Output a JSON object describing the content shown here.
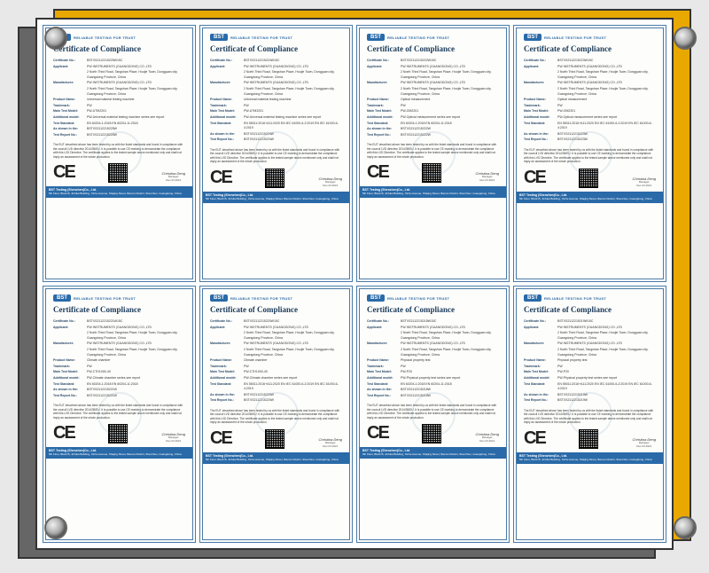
{
  "bst": {
    "logo": "BST",
    "tagline": "RELIABLE TESTING FOR TRUST"
  },
  "title": "Certificate of Compliance",
  "ce_mark": "CE",
  "signature": {
    "name": "Christina Deng",
    "role": "Manager",
    "date": "Dec.23.2021"
  },
  "applicant_company": "PW INSTRUMENTS (GUANGDONG) CO.,LTD",
  "applicant_addr": "2 North Third Road, Tangshan Place, Houjie Town, Dongguan city, Guangdong Province, China",
  "manufacturer_addr": "2 North Third Road, Tangshan Place, Houjie Town, Dongguan city, Guangdong Province, China",
  "desc_text": "The EUT described above has been tested by us with the listed standards and found in compliance with the council LVD directive 2014/35/EU. It is possible to use CE marking to demonstrate the compliance with this LVD Directive. The certificate applies to the tested sample above mentioned only and shall not imply an assessment of the whole production.",
  "footer_company": "BST Testing (Shenzhen)Co., Ltd.",
  "footer_addr": "5th Floor, Block B, Jinfulai Building, Xinhe Avenue, Shajing Street, Bao'an District, Shenzhen, Guangdong, China",
  "certs": [
    {
      "cert_no": "BSTXS2112215225W15C",
      "product": "Universal material testing machine",
      "trademark": "PW",
      "model": "PW-UTM2201",
      "add_model": "PW-Universal material testing machine series see report",
      "std": "EN 60204-1:2018\\nEN 60204-11:2018",
      "shown": "BSTXS2112215225W",
      "report": "BSTXS2112215225W"
    },
    {
      "cert_no": "BSTXS2112215224W15C",
      "product": "Universal material testing machine",
      "trademark": "PW",
      "model": "PW-UTM2201",
      "add_model": "PW-Universal material testing machine series see report",
      "std": "EN 55011:2016+A11:2020\\nEN IEC 61000-6-2:2019\\nEN IEC 61000-6-4:2019",
      "shown": "BSTXS2112215224W",
      "report": "BSTXS2112215224W"
    },
    {
      "cert_no": "BSTXS2112215222W15C",
      "product": "Optical measurement",
      "trademark": "PW",
      "model": "PW-OM2201",
      "add_model": "PW-Optical measurement series see report",
      "std": "EN 60204-1:2018\\nEN 60204-11:2018",
      "shown": "BSTXS2112215222W",
      "report": "BSTXS2112215222W"
    },
    {
      "cert_no": "BSTXS2112215223W15C",
      "product": "Optical measurement",
      "trademark": "PW",
      "model": "PW-OM2201",
      "add_model": "PW-Optical measurement series see report",
      "std": "EN 55011:2016+A11:2020\\nEN IEC 61000-6-2:2019\\nEN IEC 61000-6-4:2019",
      "shown": "BSTXS2112215223W",
      "report": "BSTXS2112215223W"
    },
    {
      "cert_no": "BSTXS2112215221W15C",
      "product": "Climate chamber",
      "trademark": "PW",
      "model": "PW-CTH1000-40",
      "add_model": "PW-Climate chamber series see report",
      "std": "EN 60204-1:2018\\nEN 60204-11:2018",
      "shown": "BSTXS2112215221W",
      "report": "BSTXS2112215221W"
    },
    {
      "cert_no": "BSTXS2112215220W15C",
      "product": "Climate chamber",
      "trademark": "PW",
      "model": "PW-CTH1000-40",
      "add_model": "PW-Climate chamber series see report",
      "std": "EN 55011:2016+A11:2020\\nEN IEC 61000-6-2:2019\\nEN IEC 61000-6-4:2019",
      "shown": "BSTXS2112215220W",
      "report": "BSTXS2112215220W"
    },
    {
      "cert_no": "BSTXS2112215218W15C",
      "product": "Physical property test",
      "trademark": "PW",
      "model": "PW-P20",
      "add_model": "PW-Physical property test series see report",
      "std": "EN 60204-1:2018\\nEN 60204-11:2018",
      "shown": "BSTXS2112215218W",
      "report": "BSTXS2112215218W"
    },
    {
      "cert_no": "BSTXS2112215219W15C",
      "product": "Physical property test",
      "trademark": "PW",
      "model": "PW-P20",
      "add_model": "PW-Physical property test series see report",
      "std": "EN 55011:2016+A11:2020\\nEN IEC 61000-6-2:2019\\nEN IEC 61000-6-4:2019",
      "shown": "BSTXS2112215219W",
      "report": "BSTXS2112215219W"
    }
  ],
  "field_labels": {
    "cert_no": "Certificate No.:",
    "applicant": "Applicant:",
    "manufacturer": "Manufacturer:",
    "product": "Product Name:",
    "trademark": "Trademark:",
    "model": "Main Test Model:",
    "add_model": "Additional model:",
    "std": "Test Standard:",
    "shown": "As shown in the:",
    "report": "Test Report No.:"
  },
  "colors": {
    "border": "#4a7ba8",
    "heading": "#1a3a5a",
    "bst_blue": "#2a6aa8",
    "bg": "#e8e8e8",
    "yellow": "#e8a800",
    "gray": "#666"
  }
}
